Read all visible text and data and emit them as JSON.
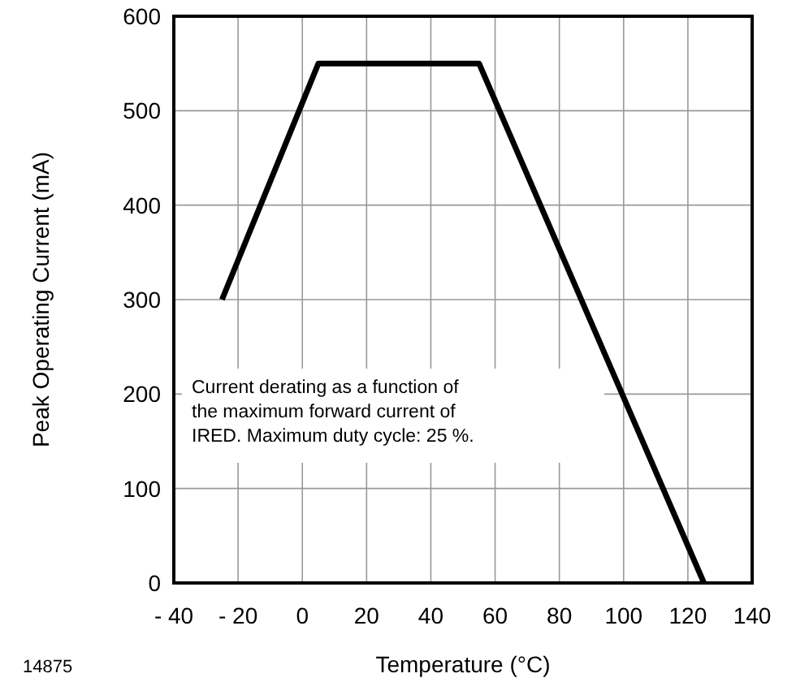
{
  "chart_data": {
    "type": "line",
    "xlabel": "Temperature (°C)",
    "ylabel": "Peak Operating Current (mA)",
    "x": [
      -25,
      5,
      55,
      125
    ],
    "series": [
      {
        "color": "#000000",
        "values": [
          300,
          550,
          550,
          0
        ]
      }
    ],
    "xlim": [
      -40,
      140
    ],
    "xticks": [
      {
        "value": -40,
        "label": "- 40"
      },
      {
        "value": -20,
        "label": "- 20"
      },
      0,
      20,
      40,
      60,
      80,
      100,
      120,
      140
    ],
    "ylim": [
      0,
      600
    ],
    "yticks": [
      0,
      100,
      200,
      300,
      400,
      500,
      600
    ],
    "grid": true,
    "marker": "none",
    "line_style": "solid",
    "annotations": [
      "Current derating as a function of the maximum forward current of IRED. Maximum duty cycle: 25 %.",
      "14875"
    ]
  }
}
